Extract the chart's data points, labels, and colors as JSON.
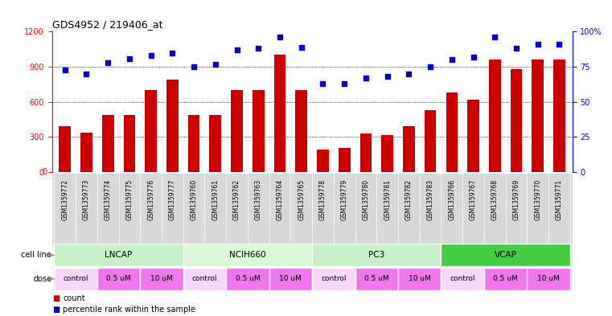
{
  "title": "GDS4952 / 219406_at",
  "samples": [
    "GSM1359772",
    "GSM1359773",
    "GSM1359774",
    "GSM1359775",
    "GSM1359776",
    "GSM1359777",
    "GSM1359760",
    "GSM1359761",
    "GSM1359762",
    "GSM1359763",
    "GSM1359764",
    "GSM1359765",
    "GSM1359778",
    "GSM1359779",
    "GSM1359780",
    "GSM1359781",
    "GSM1359782",
    "GSM1359783",
    "GSM1359766",
    "GSM1359767",
    "GSM1359768",
    "GSM1359769",
    "GSM1359770",
    "GSM1359771"
  ],
  "counts": [
    390,
    340,
    490,
    490,
    700,
    790,
    490,
    490,
    700,
    700,
    1000,
    700,
    195,
    205,
    330,
    320,
    390,
    530,
    680,
    620,
    960,
    880,
    960,
    960
  ],
  "percentile_ranks": [
    73,
    70,
    78,
    81,
    83,
    85,
    75,
    77,
    87,
    88,
    96,
    89,
    63,
    63,
    67,
    68,
    70,
    75,
    80,
    82,
    96,
    88,
    91,
    91
  ],
  "cell_lines": [
    {
      "name": "LNCAP",
      "start": 0,
      "end": 6,
      "color": "#c8f0c8"
    },
    {
      "name": "NCIH660",
      "start": 6,
      "end": 12,
      "color": "#d8f8d8"
    },
    {
      "name": "PC3",
      "start": 12,
      "end": 18,
      "color": "#c8f0c8"
    },
    {
      "name": "VCAP",
      "start": 18,
      "end": 24,
      "color": "#44cc44"
    }
  ],
  "dose_groups": [
    {
      "label": "control",
      "start": 0,
      "end": 2,
      "color": "#f8d8f8"
    },
    {
      "label": "0.5 uM",
      "start": 2,
      "end": 4,
      "color": "#ee77ee"
    },
    {
      "label": "10 uM",
      "start": 4,
      "end": 6,
      "color": "#ee77ee"
    },
    {
      "label": "control",
      "start": 6,
      "end": 8,
      "color": "#f8d8f8"
    },
    {
      "label": "0.5 uM",
      "start": 8,
      "end": 10,
      "color": "#ee77ee"
    },
    {
      "label": "10 uM",
      "start": 10,
      "end": 12,
      "color": "#ee77ee"
    },
    {
      "label": "control",
      "start": 12,
      "end": 14,
      "color": "#f8d8f8"
    },
    {
      "label": "0.5 uM",
      "start": 14,
      "end": 16,
      "color": "#ee77ee"
    },
    {
      "label": "10 uM",
      "start": 16,
      "end": 18,
      "color": "#ee77ee"
    },
    {
      "label": "control",
      "start": 18,
      "end": 20,
      "color": "#f8d8f8"
    },
    {
      "label": "0.5 uM",
      "start": 20,
      "end": 22,
      "color": "#ee77ee"
    },
    {
      "label": "10 uM",
      "start": 22,
      "end": 24,
      "color": "#ee77ee"
    }
  ],
  "bar_color": "#cc0000",
  "dot_color": "#0000cc",
  "ylim_left": [
    0,
    1200
  ],
  "ylim_right": [
    0,
    100
  ],
  "yticks_left": [
    0,
    300,
    600,
    900,
    1200
  ],
  "yticks_right": [
    0,
    25,
    50,
    75,
    100
  ],
  "grid_values": [
    300,
    600,
    900
  ],
  "bg_color": "#ffffff",
  "label_bg_color": "#d8d8d8"
}
